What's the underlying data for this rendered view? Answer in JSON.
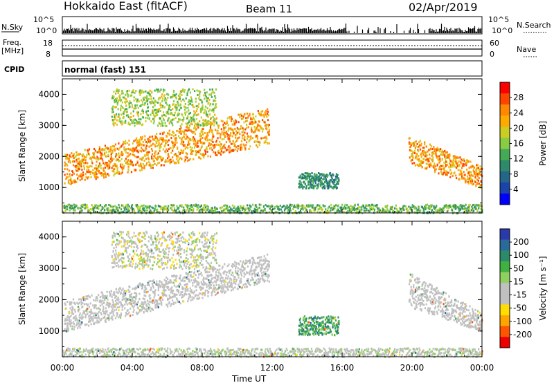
{
  "header": {
    "title": "Hokkaido East (fitACF)",
    "beam": "Beam 11",
    "date": "02/Apr/2019"
  },
  "status_panels": {
    "nsky_label": "N.Sky",
    "nsky_ticks": [
      "10^5",
      "10^0"
    ],
    "nsearch_label": "N.Search",
    "freq_label_line1": "Freq.",
    "freq_label_line2": "[MHz]",
    "freq_ticks": [
      "18",
      "8"
    ],
    "nave_label": "Nave",
    "nave_ticks": [
      "60",
      "0"
    ],
    "cpid_label": "CPID",
    "cpid_value": "normal (fast) 151"
  },
  "colorbars": {
    "power": {
      "label": "Power [dB]",
      "ticks": [
        "28",
        "24",
        "20",
        "16",
        "12",
        "8",
        "4"
      ],
      "colors": [
        "#ff0000",
        "#ff4400",
        "#ff8800",
        "#ffaa00",
        "#cccc22",
        "#88cc44",
        "#44aa55",
        "#2d8a6a",
        "#236688",
        "#1a44aa",
        "#0000ff"
      ]
    },
    "velocity": {
      "label": "Velocity [m s⁻¹]",
      "ticks": [
        "200",
        "100",
        "50",
        "15",
        "-15",
        "-50",
        "-100",
        "-200"
      ],
      "colors": [
        "#2a3aaa",
        "#2a6a9a",
        "#2a8a6a",
        "#40b040",
        "#90d060",
        "#c0c0c0",
        "#c0c0c0",
        "#ffdd00",
        "#ffa500",
        "#ff5500",
        "#ee0000"
      ]
    }
  },
  "chart_data": [
    {
      "type": "heatmap",
      "title": "Power",
      "xlabel": "Time UT",
      "ylabel": "Slant Range [km]",
      "xticks": [
        "00:00",
        "04:00",
        "08:00",
        "12:00",
        "16:00",
        "20:00",
        "00:00"
      ],
      "yticks": [
        "1000",
        "2000",
        "3000",
        "4000"
      ],
      "xlim_hours": [
        0,
        24
      ],
      "ylim_km": [
        180,
        4500
      ],
      "color_scale": "Power [dB]",
      "scatter_regions": [
        {
          "name": "main-arc",
          "start_h": 0.1,
          "end_h": 11.8,
          "range_start_km": [
            1100,
            2100
          ],
          "range_end_km": [
            2400,
            3600
          ],
          "power_db": [
            18,
            30
          ]
        },
        {
          "name": "upper-band",
          "start_h": 2.8,
          "end_h": 8.8,
          "range_km": [
            3000,
            4200
          ],
          "power_db": [
            12,
            22
          ]
        },
        {
          "name": "midday-streak",
          "start_h": 13.5,
          "end_h": 15.8,
          "range_km": [
            1000,
            1500
          ],
          "power_db": [
            6,
            14
          ]
        },
        {
          "name": "evening-arc",
          "start_h": 19.8,
          "end_h": 24.0,
          "range_start_km": [
            1800,
            2700
          ],
          "range_end_km": [
            1000,
            1700
          ],
          "power_db": [
            18,
            30
          ]
        },
        {
          "name": "ground-clutter",
          "start_h": 0.0,
          "end_h": 24.0,
          "range_km": [
            200,
            480
          ],
          "power_db": [
            8,
            20
          ]
        }
      ]
    },
    {
      "type": "heatmap",
      "title": "Velocity",
      "xlabel": "Time UT",
      "ylabel": "Slant Range [km]",
      "xticks": [
        "00:00",
        "04:00",
        "08:00",
        "12:00",
        "16:00",
        "20:00",
        "00:00"
      ],
      "yticks": [
        "1000",
        "2000",
        "3000",
        "4000"
      ],
      "xlim_hours": [
        0,
        24
      ],
      "ylim_km": [
        180,
        4500
      ],
      "color_scale": "Velocity [m s⁻¹]",
      "scatter_regions": [
        {
          "name": "main-arc",
          "start_h": 0.1,
          "end_h": 11.8,
          "range_start_km": [
            1000,
            2000
          ],
          "range_end_km": [
            2600,
            3500
          ],
          "velocity_ms": [
            -15,
            15
          ]
        },
        {
          "name": "upper-band",
          "start_h": 2.8,
          "end_h": 8.8,
          "range_km": [
            3000,
            4200
          ],
          "velocity_ms": [
            -100,
            50
          ]
        },
        {
          "name": "midday-streak",
          "start_h": 13.5,
          "end_h": 15.8,
          "range_km": [
            900,
            1500
          ],
          "velocity_ms": [
            50,
            200
          ]
        },
        {
          "name": "evening-arc",
          "start_h": 19.8,
          "end_h": 24.0,
          "range_start_km": [
            1800,
            2900
          ],
          "range_end_km": [
            1000,
            1600
          ],
          "velocity_ms": [
            -15,
            15
          ]
        },
        {
          "name": "ground-clutter",
          "start_h": 0.0,
          "end_h": 24.0,
          "range_km": [
            200,
            480
          ],
          "velocity_ms": [
            -50,
            50
          ]
        }
      ]
    }
  ]
}
